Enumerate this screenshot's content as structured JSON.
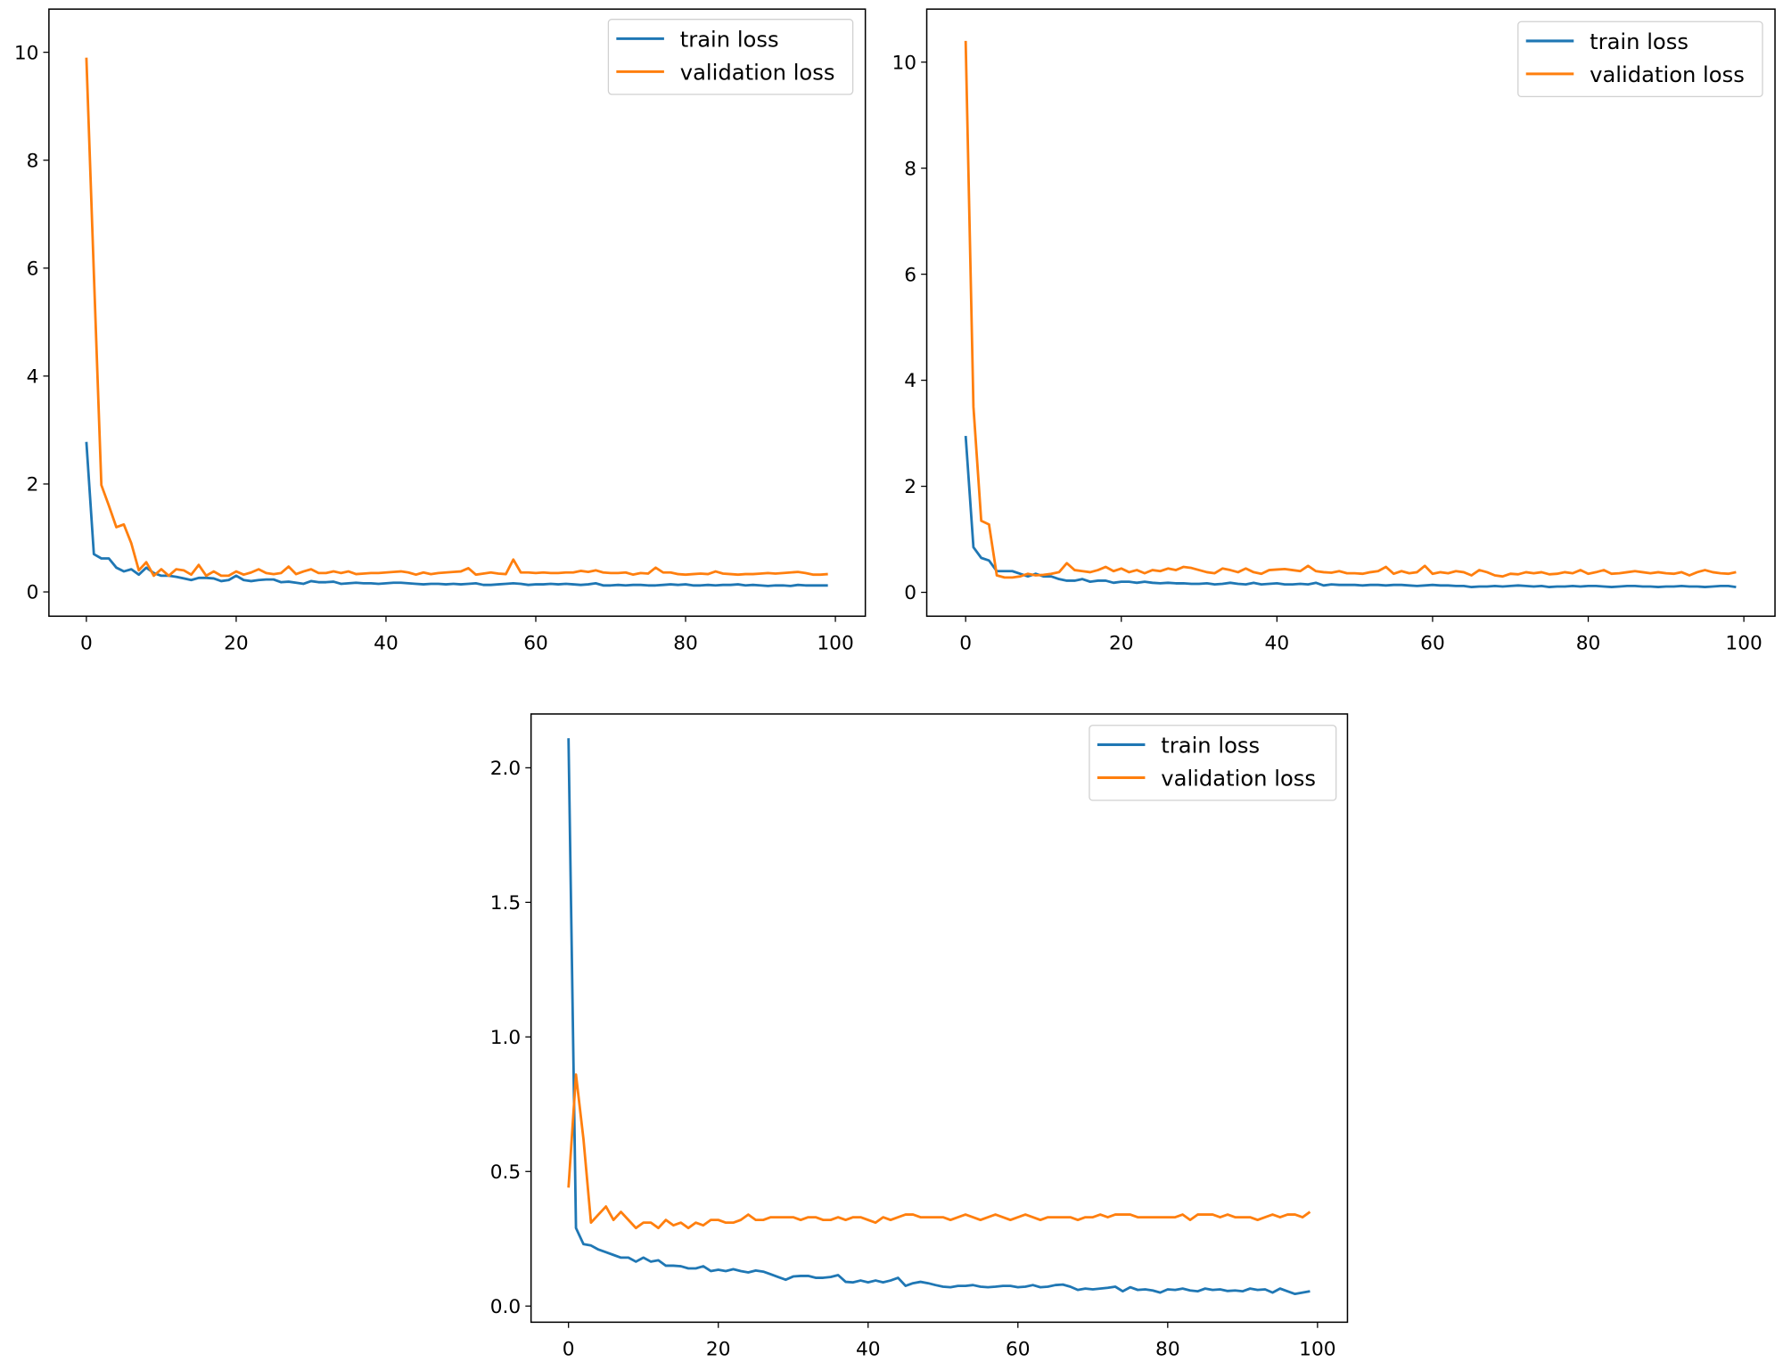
{
  "colors": {
    "train": "#1f77b4",
    "validation": "#ff7f0e"
  },
  "chart_data": [
    {
      "type": "line",
      "title": "",
      "xlabel": "",
      "ylabel": "",
      "xlim": [
        -5,
        104
      ],
      "ylim": [
        -0.45,
        10.8
      ],
      "xticks": [
        0,
        20,
        40,
        60,
        80,
        100
      ],
      "yticks": [
        0,
        2,
        4,
        6,
        8,
        10
      ],
      "xtick_labels": [
        "0",
        "20",
        "40",
        "60",
        "80",
        "100"
      ],
      "ytick_labels": [
        "0",
        "2",
        "4",
        "6",
        "8",
        "10"
      ],
      "legend_position": "top-right",
      "series": [
        {
          "name": "train loss",
          "values": [
            2.78,
            0.7,
            0.62,
            0.62,
            0.45,
            0.38,
            0.42,
            0.32,
            0.45,
            0.35,
            0.3,
            0.3,
            0.28,
            0.25,
            0.22,
            0.26,
            0.26,
            0.25,
            0.2,
            0.22,
            0.3,
            0.22,
            0.2,
            0.22,
            0.23,
            0.23,
            0.18,
            0.19,
            0.17,
            0.15,
            0.2,
            0.18,
            0.18,
            0.19,
            0.15,
            0.16,
            0.17,
            0.16,
            0.16,
            0.15,
            0.16,
            0.17,
            0.17,
            0.16,
            0.15,
            0.14,
            0.15,
            0.15,
            0.14,
            0.15,
            0.14,
            0.15,
            0.16,
            0.13,
            0.13,
            0.14,
            0.15,
            0.16,
            0.15,
            0.13,
            0.14,
            0.14,
            0.15,
            0.14,
            0.15,
            0.14,
            0.13,
            0.14,
            0.16,
            0.12,
            0.12,
            0.13,
            0.12,
            0.13,
            0.13,
            0.12,
            0.12,
            0.13,
            0.14,
            0.13,
            0.14,
            0.12,
            0.12,
            0.13,
            0.12,
            0.13,
            0.13,
            0.14,
            0.12,
            0.13,
            0.12,
            0.11,
            0.12,
            0.12,
            0.11,
            0.13,
            0.12,
            0.12,
            0.12,
            0.12
          ]
        },
        {
          "name": "validation loss",
          "values": [
            9.9,
            5.9,
            1.98,
            1.6,
            1.2,
            1.25,
            0.9,
            0.4,
            0.55,
            0.3,
            0.42,
            0.3,
            0.42,
            0.4,
            0.32,
            0.5,
            0.3,
            0.38,
            0.3,
            0.3,
            0.38,
            0.32,
            0.36,
            0.42,
            0.35,
            0.33,
            0.35,
            0.47,
            0.33,
            0.38,
            0.42,
            0.35,
            0.35,
            0.38,
            0.35,
            0.38,
            0.33,
            0.34,
            0.35,
            0.35,
            0.36,
            0.37,
            0.38,
            0.36,
            0.32,
            0.36,
            0.33,
            0.35,
            0.36,
            0.37,
            0.38,
            0.44,
            0.32,
            0.34,
            0.36,
            0.34,
            0.33,
            0.6,
            0.36,
            0.36,
            0.35,
            0.36,
            0.35,
            0.35,
            0.36,
            0.36,
            0.39,
            0.37,
            0.4,
            0.36,
            0.35,
            0.35,
            0.36,
            0.32,
            0.35,
            0.34,
            0.45,
            0.36,
            0.36,
            0.33,
            0.32,
            0.33,
            0.34,
            0.33,
            0.38,
            0.34,
            0.33,
            0.32,
            0.33,
            0.33,
            0.34,
            0.35,
            0.34,
            0.35,
            0.36,
            0.37,
            0.35,
            0.32,
            0.32,
            0.33
          ]
        }
      ]
    },
    {
      "type": "line",
      "title": "",
      "xlabel": "",
      "ylabel": "",
      "xlim": [
        -5,
        104
      ],
      "ylim": [
        -0.45,
        11.0
      ],
      "xticks": [
        0,
        20,
        40,
        60,
        80,
        100
      ],
      "yticks": [
        0,
        2,
        4,
        6,
        8,
        10
      ],
      "xtick_labels": [
        "0",
        "20",
        "40",
        "60",
        "80",
        "100"
      ],
      "ytick_labels": [
        "0",
        "2",
        "4",
        "6",
        "8",
        "10"
      ],
      "legend_position": "top-right",
      "series": [
        {
          "name": "train loss",
          "values": [
            2.95,
            0.85,
            0.65,
            0.6,
            0.4,
            0.4,
            0.4,
            0.35,
            0.3,
            0.35,
            0.3,
            0.3,
            0.25,
            0.22,
            0.22,
            0.25,
            0.2,
            0.22,
            0.22,
            0.18,
            0.2,
            0.2,
            0.18,
            0.2,
            0.18,
            0.17,
            0.18,
            0.17,
            0.17,
            0.16,
            0.16,
            0.17,
            0.15,
            0.16,
            0.18,
            0.16,
            0.15,
            0.18,
            0.15,
            0.16,
            0.17,
            0.15,
            0.15,
            0.16,
            0.15,
            0.18,
            0.13,
            0.15,
            0.14,
            0.14,
            0.14,
            0.13,
            0.14,
            0.14,
            0.13,
            0.14,
            0.14,
            0.13,
            0.12,
            0.13,
            0.14,
            0.13,
            0.13,
            0.12,
            0.12,
            0.1,
            0.11,
            0.11,
            0.12,
            0.11,
            0.12,
            0.13,
            0.12,
            0.11,
            0.12,
            0.1,
            0.11,
            0.11,
            0.12,
            0.11,
            0.12,
            0.12,
            0.11,
            0.1,
            0.11,
            0.12,
            0.12,
            0.11,
            0.11,
            0.1,
            0.11,
            0.11,
            0.12,
            0.11,
            0.11,
            0.1,
            0.11,
            0.12,
            0.12,
            0.1
          ]
        },
        {
          "name": "validation loss",
          "values": [
            10.4,
            3.5,
            1.35,
            1.28,
            0.32,
            0.28,
            0.28,
            0.3,
            0.35,
            0.32,
            0.33,
            0.35,
            0.38,
            0.55,
            0.42,
            0.4,
            0.38,
            0.42,
            0.48,
            0.4,
            0.45,
            0.38,
            0.42,
            0.36,
            0.42,
            0.4,
            0.45,
            0.42,
            0.48,
            0.46,
            0.42,
            0.38,
            0.36,
            0.45,
            0.42,
            0.38,
            0.45,
            0.38,
            0.35,
            0.42,
            0.43,
            0.44,
            0.42,
            0.4,
            0.5,
            0.4,
            0.38,
            0.37,
            0.4,
            0.36,
            0.36,
            0.35,
            0.38,
            0.4,
            0.48,
            0.35,
            0.4,
            0.36,
            0.38,
            0.5,
            0.35,
            0.38,
            0.36,
            0.4,
            0.38,
            0.32,
            0.42,
            0.38,
            0.32,
            0.3,
            0.35,
            0.34,
            0.38,
            0.36,
            0.38,
            0.34,
            0.35,
            0.38,
            0.36,
            0.42,
            0.35,
            0.38,
            0.42,
            0.35,
            0.36,
            0.38,
            0.4,
            0.38,
            0.36,
            0.38,
            0.36,
            0.35,
            0.38,
            0.32,
            0.38,
            0.42,
            0.38,
            0.36,
            0.35,
            0.38
          ]
        }
      ]
    },
    {
      "type": "line",
      "title": "",
      "xlabel": "",
      "ylabel": "",
      "xlim": [
        -5,
        104
      ],
      "ylim": [
        -0.06,
        2.2
      ],
      "xticks": [
        0,
        20,
        40,
        60,
        80,
        100
      ],
      "yticks": [
        0.0,
        0.5,
        1.0,
        1.5,
        2.0
      ],
      "xtick_labels": [
        "0",
        "20",
        "40",
        "60",
        "80",
        "100"
      ],
      "ytick_labels": [
        "0.0",
        "0.5",
        "1.0",
        "1.5",
        "2.0"
      ],
      "legend_position": "top-right",
      "series": [
        {
          "name": "train loss",
          "values": [
            2.11,
            0.29,
            0.23,
            0.225,
            0.21,
            0.2,
            0.19,
            0.18,
            0.18,
            0.165,
            0.18,
            0.165,
            0.17,
            0.15,
            0.15,
            0.148,
            0.14,
            0.14,
            0.148,
            0.13,
            0.135,
            0.13,
            0.137,
            0.13,
            0.125,
            0.132,
            0.128,
            0.118,
            0.108,
            0.098,
            0.11,
            0.112,
            0.112,
            0.105,
            0.105,
            0.108,
            0.115,
            0.09,
            0.088,
            0.095,
            0.088,
            0.095,
            0.088,
            0.095,
            0.105,
            0.075,
            0.085,
            0.09,
            0.085,
            0.078,
            0.072,
            0.07,
            0.075,
            0.075,
            0.078,
            0.072,
            0.07,
            0.072,
            0.075,
            0.075,
            0.07,
            0.072,
            0.078,
            0.07,
            0.072,
            0.078,
            0.08,
            0.072,
            0.06,
            0.065,
            0.062,
            0.065,
            0.068,
            0.072,
            0.055,
            0.07,
            0.06,
            0.062,
            0.058,
            0.05,
            0.062,
            0.06,
            0.065,
            0.058,
            0.055,
            0.065,
            0.06,
            0.062,
            0.056,
            0.058,
            0.055,
            0.065,
            0.06,
            0.062,
            0.05,
            0.065,
            0.055,
            0.045,
            0.05,
            0.055
          ]
        },
        {
          "name": "validation loss",
          "values": [
            0.44,
            0.86,
            0.62,
            0.31,
            0.34,
            0.37,
            0.32,
            0.35,
            0.32,
            0.29,
            0.31,
            0.31,
            0.29,
            0.32,
            0.3,
            0.31,
            0.29,
            0.31,
            0.3,
            0.32,
            0.32,
            0.31,
            0.31,
            0.32,
            0.34,
            0.32,
            0.32,
            0.33,
            0.33,
            0.33,
            0.33,
            0.32,
            0.33,
            0.33,
            0.32,
            0.32,
            0.33,
            0.32,
            0.33,
            0.33,
            0.32,
            0.31,
            0.33,
            0.32,
            0.33,
            0.34,
            0.34,
            0.33,
            0.33,
            0.33,
            0.33,
            0.32,
            0.33,
            0.34,
            0.33,
            0.32,
            0.33,
            0.34,
            0.33,
            0.32,
            0.33,
            0.34,
            0.33,
            0.32,
            0.33,
            0.33,
            0.33,
            0.33,
            0.32,
            0.33,
            0.33,
            0.34,
            0.33,
            0.34,
            0.34,
            0.34,
            0.33,
            0.33,
            0.33,
            0.33,
            0.33,
            0.33,
            0.34,
            0.32,
            0.34,
            0.34,
            0.34,
            0.33,
            0.34,
            0.33,
            0.33,
            0.33,
            0.32,
            0.33,
            0.34,
            0.33,
            0.34,
            0.34,
            0.33,
            0.35
          ]
        }
      ]
    }
  ]
}
